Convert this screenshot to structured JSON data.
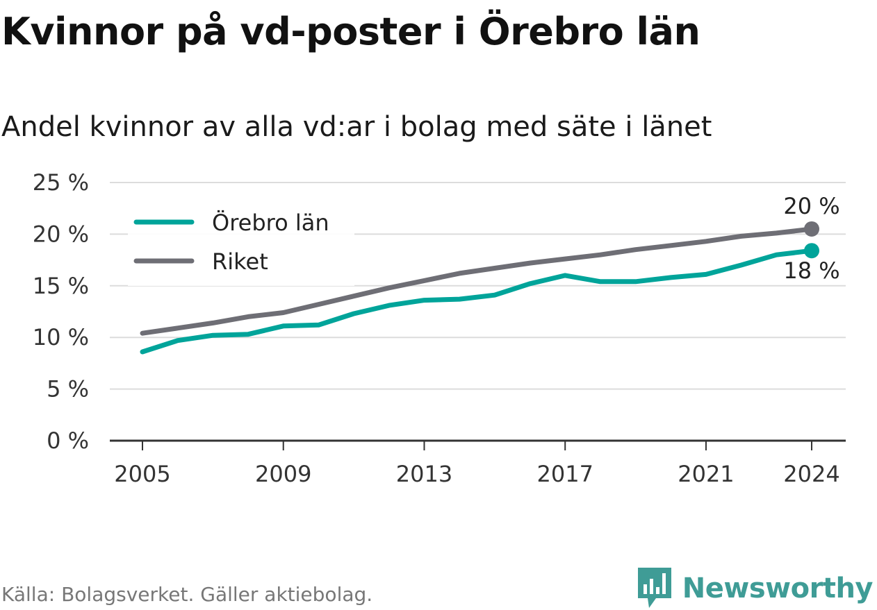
{
  "title": "Kvinnor på vd-poster i Örebro län",
  "subtitle": "Andel kvinnor av alla vd:ar i bolag med säte i länet",
  "source": "Källa: Bolagsverket. Gäller aktiebolag.",
  "brand": {
    "name": "Newsworthy",
    "icon": "newsworthy-logo-icon",
    "color": "#3f9c96"
  },
  "chart_data": {
    "type": "line",
    "title": "Andel kvinnor av alla vd:ar i bolag med säte i länet",
    "xlabel": "",
    "ylabel": "",
    "x": [
      2005,
      2006,
      2007,
      2008,
      2009,
      2010,
      2011,
      2012,
      2013,
      2014,
      2015,
      2016,
      2017,
      2018,
      2019,
      2020,
      2021,
      2022,
      2023,
      2024
    ],
    "xticks": [
      "2005",
      "2009",
      "2013",
      "2017",
      "2021",
      "2024"
    ],
    "yticks": [
      "0 %",
      "5 %",
      "10 %",
      "15 %",
      "20 %",
      "25 %"
    ],
    "ylim": [
      0,
      25
    ],
    "xlim": [
      2004,
      2025
    ],
    "grid": true,
    "legend_position": "top-left",
    "series": [
      {
        "name": "Örebro län",
        "color": "#00a49a",
        "values": [
          8.6,
          9.7,
          10.2,
          10.3,
          11.1,
          11.2,
          12.3,
          13.1,
          13.6,
          13.7,
          14.1,
          15.2,
          16.0,
          15.4,
          15.4,
          15.8,
          16.1,
          17.0,
          18.0,
          18.4
        ],
        "end_label": "18 %"
      },
      {
        "name": "Riket",
        "color": "#6e6e75",
        "values": [
          10.4,
          10.9,
          11.4,
          12.0,
          12.4,
          13.2,
          14.0,
          14.8,
          15.5,
          16.2,
          16.7,
          17.2,
          17.6,
          18.0,
          18.5,
          18.9,
          19.3,
          19.8,
          20.1,
          20.5
        ],
        "end_label": "20 %"
      }
    ]
  }
}
